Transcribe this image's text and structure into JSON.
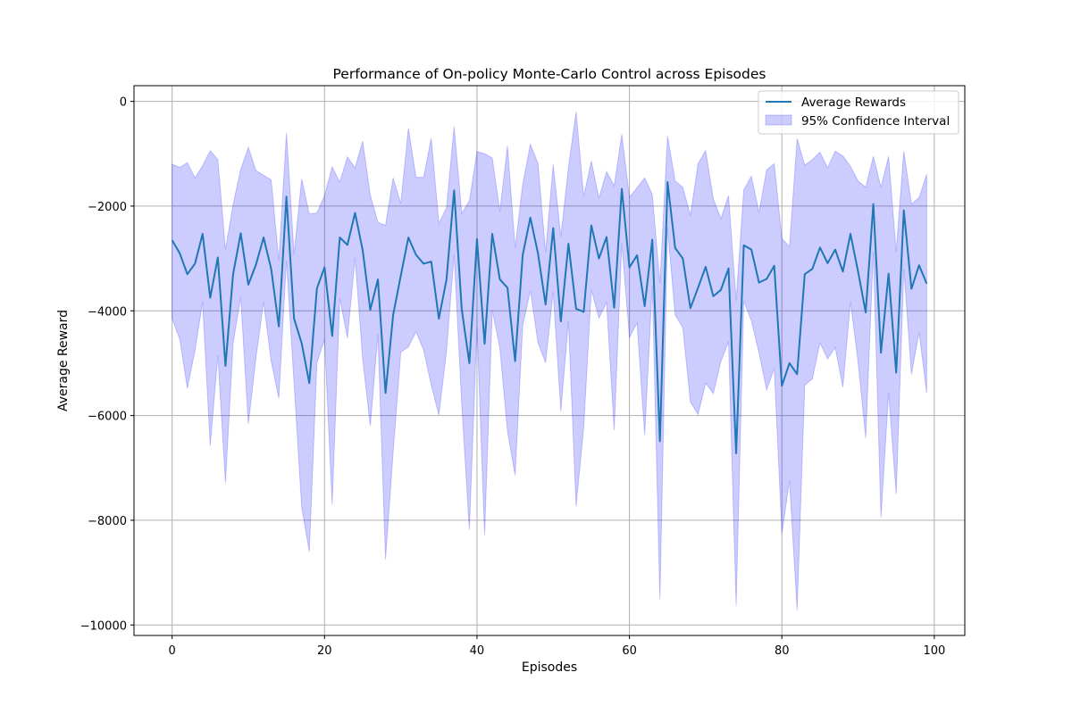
{
  "chart_data": {
    "type": "line",
    "title": "Performance of On-policy Monte-Carlo Control across Episodes",
    "xlabel": "Episodes",
    "ylabel": "Average Reward",
    "xlim": [
      -5,
      104
    ],
    "ylim": [
      -10200,
      300
    ],
    "xticks": [
      0,
      20,
      40,
      60,
      80,
      100
    ],
    "yticks": [
      0,
      -2000,
      -4000,
      -6000,
      -8000,
      -10000
    ],
    "xtick_labels": [
      "0",
      "20",
      "40",
      "60",
      "80",
      "100"
    ],
    "ytick_labels": [
      "0",
      "−2000",
      "−4000",
      "−6000",
      "−8000",
      "−10000"
    ],
    "grid": true,
    "legend": {
      "placement": "top-right",
      "entries": [
        "Average Rewards",
        "95% Confidence Interval"
      ]
    },
    "series": [
      {
        "name": "Average Rewards",
        "color": "#1f77b4",
        "x": [
          0,
          1,
          2,
          3,
          4,
          5,
          6,
          7,
          8,
          9,
          10,
          11,
          12,
          13,
          14,
          15,
          16,
          17,
          18,
          19,
          20,
          21,
          22,
          23,
          24,
          25,
          26,
          27,
          28,
          29,
          30,
          31,
          32,
          33,
          34,
          35,
          36,
          37,
          38,
          39,
          40,
          41,
          42,
          43,
          44,
          45,
          46,
          47,
          48,
          49,
          50,
          51,
          52,
          53,
          54,
          55,
          56,
          57,
          58,
          59,
          60,
          61,
          62,
          63,
          64,
          65,
          66,
          67,
          68,
          69,
          70,
          71,
          72,
          73,
          74,
          75,
          76,
          77,
          78,
          79,
          80,
          81,
          82,
          83,
          84,
          85,
          86,
          87,
          88,
          89,
          90,
          91,
          92,
          93,
          94,
          95,
          96,
          97,
          98,
          99
        ],
        "values": [
          -2650,
          -2900,
          -3300,
          -3100,
          -2530,
          -3750,
          -2980,
          -5050,
          -3300,
          -2520,
          -3500,
          -3120,
          -2600,
          -3200,
          -4300,
          -1820,
          -4150,
          -4620,
          -5380,
          -3570,
          -3170,
          -4480,
          -2600,
          -2740,
          -2130,
          -2840,
          -3980,
          -3400,
          -5570,
          -4080,
          -3330,
          -2600,
          -2930,
          -3100,
          -3060,
          -4150,
          -3400,
          -1700,
          -3970,
          -5000,
          -2630,
          -4630,
          -2530,
          -3400,
          -3560,
          -4960,
          -2930,
          -2220,
          -2900,
          -3880,
          -2420,
          -4200,
          -2720,
          -3960,
          -4020,
          -2370,
          -3000,
          -2590,
          -3940,
          -1670,
          -3170,
          -2940,
          -3910,
          -2640,
          -6490,
          -1540,
          -2800,
          -3000,
          -3950,
          -3560,
          -3160,
          -3720,
          -3600,
          -3190,
          -6720,
          -2750,
          -2830,
          -3460,
          -3390,
          -3140,
          -5430,
          -5000,
          -5210,
          -3300,
          -3200,
          -2790,
          -3090,
          -2830,
          -3250,
          -2530,
          -3250,
          -4030,
          -1960,
          -4800,
          -3290,
          -5180,
          -2080,
          -3580,
          -3130,
          -3480
        ]
      }
    ],
    "confidence_band": {
      "name": "95% Confidence Interval",
      "color": "#0000ff",
      "opacity": 0.2,
      "upper": [
        -1200,
        -1260,
        -1170,
        -1460,
        -1230,
        -940,
        -1110,
        -2830,
        -1970,
        -1300,
        -880,
        -1320,
        -1410,
        -1500,
        -3050,
        -600,
        -2920,
        -1480,
        -2150,
        -2130,
        -1800,
        -1250,
        -1540,
        -1060,
        -1270,
        -760,
        -1790,
        -2310,
        -2370,
        -1460,
        -1950,
        -510,
        -1450,
        -1450,
        -700,
        -2330,
        -2030,
        -480,
        -2140,
        -1900,
        -960,
        -1000,
        -1080,
        -2100,
        -850,
        -2790,
        -1580,
        -820,
        -1180,
        -2880,
        -1210,
        -2580,
        -1260,
        -200,
        -1820,
        -1140,
        -1850,
        -1340,
        -1610,
        -630,
        -1830,
        -1650,
        -1460,
        -1780,
        -3470,
        -660,
        -1520,
        -1640,
        -2180,
        -1190,
        -940,
        -1860,
        -2240,
        -1800,
        -3800,
        -1690,
        -1430,
        -2120,
        -1310,
        -1190,
        -2620,
        -2770,
        -710,
        -1220,
        -1110,
        -970,
        -1270,
        -950,
        -1040,
        -1240,
        -1520,
        -1640,
        -1050,
        -1640,
        -1050,
        -2870,
        -950,
        -1960,
        -1840,
        -1390
      ],
      "lower": [
        -4150,
        -4540,
        -5480,
        -4760,
        -3830,
        -6580,
        -4850,
        -7290,
        -4620,
        -3740,
        -6160,
        -4900,
        -3830,
        -4970,
        -5670,
        -3040,
        -5380,
        -7750,
        -8600,
        -5000,
        -4540,
        -7700,
        -3760,
        -4520,
        -2990,
        -4920,
        -6200,
        -4450,
        -8750,
        -6700,
        -4790,
        -4690,
        -4400,
        -4750,
        -5420,
        -5990,
        -4770,
        -2920,
        -5790,
        -8180,
        -4310,
        -8280,
        -3990,
        -4710,
        -6300,
        -7140,
        -4280,
        -3610,
        -4610,
        -4990,
        -3640,
        -5920,
        -4190,
        -7730,
        -6230,
        -3600,
        -4140,
        -3840,
        -6280,
        -2710,
        -4510,
        -4230,
        -6370,
        -3510,
        -9510,
        -2420,
        -4080,
        -4320,
        -5740,
        -5980,
        -5380,
        -5580,
        -4970,
        -4590,
        -9630,
        -3810,
        -4190,
        -4800,
        -5510,
        -5100,
        -8250,
        -7240,
        -9720,
        -5420,
        -5300,
        -4610,
        -4920,
        -4700,
        -5460,
        -3830,
        -4980,
        -6430,
        -2870,
        -7950,
        -5560,
        -7500,
        -3200,
        -5210,
        -4410,
        -5570
      ]
    }
  }
}
